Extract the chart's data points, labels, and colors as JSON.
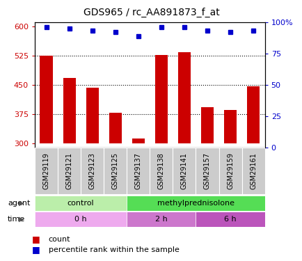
{
  "title": "GDS965 / rc_AA891873_f_at",
  "samples": [
    "GSM29119",
    "GSM29121",
    "GSM29123",
    "GSM29125",
    "GSM29137",
    "GSM29138",
    "GSM29141",
    "GSM29157",
    "GSM29159",
    "GSM29161"
  ],
  "counts": [
    524,
    468,
    443,
    378,
    313,
    527,
    533,
    393,
    385,
    447
  ],
  "percentile_ranks": [
    96,
    95,
    93,
    92,
    89,
    96,
    96,
    93,
    92,
    93
  ],
  "ylim_left": [
    290,
    610
  ],
  "ylim_right": [
    0,
    100
  ],
  "yticks_left": [
    300,
    375,
    450,
    525,
    600
  ],
  "yticks_right": [
    0,
    25,
    50,
    75,
    100
  ],
  "bar_color": "#cc0000",
  "dot_color": "#0000cc",
  "bar_bottom": 300,
  "agent_labels": [
    {
      "label": "control",
      "start": 0,
      "end": 4,
      "color": "#bbeeaa"
    },
    {
      "label": "methylprednisolone",
      "start": 4,
      "end": 10,
      "color": "#55dd55"
    }
  ],
  "time_labels": [
    {
      "label": "0 h",
      "start": 0,
      "end": 4,
      "color": "#eeaaee"
    },
    {
      "label": "2 h",
      "start": 4,
      "end": 7,
      "color": "#cc77cc"
    },
    {
      "label": "6 h",
      "start": 7,
      "end": 10,
      "color": "#bb55bb"
    }
  ],
  "legend_count_color": "#cc0000",
  "legend_dot_color": "#0000cc",
  "legend_count_label": "count",
  "legend_dot_label": "percentile rank within the sample",
  "agent_row_label": "agent",
  "time_row_label": "time",
  "bar_width": 0.55,
  "axis_color_left": "#cc0000",
  "axis_color_right": "#0000cc",
  "hgrid_lines": [
    375,
    450,
    525
  ],
  "dot_percentile_y": [
    96,
    95,
    93,
    92,
    89,
    96,
    96,
    93,
    92,
    93
  ]
}
